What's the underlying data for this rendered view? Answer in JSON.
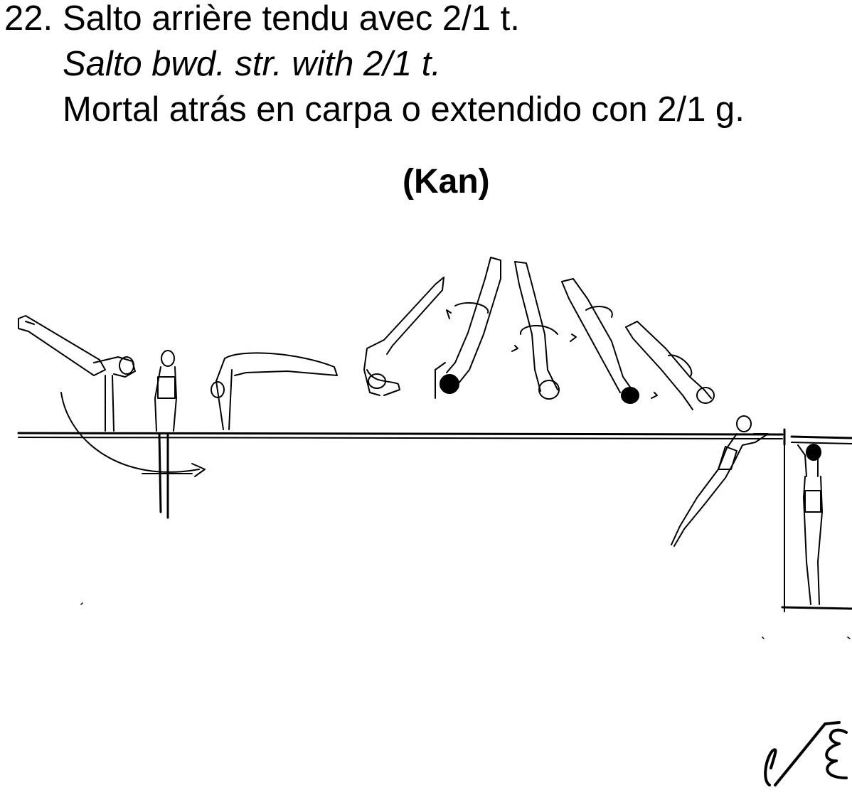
{
  "element": {
    "number": "22.",
    "name_fr": "Salto arrière tendu avec 2/1 t.",
    "name_en": "Salto bwd. str. with 2/1 t.",
    "name_es": "Mortal atrás en carpa o extendido con 2/1 g.",
    "gymnast_name": "(Kan)"
  },
  "illustration": {
    "figures": [
      "handstand-pirouette-figure",
      "standing-figure",
      "pike-press-figure",
      "salto-figure-1",
      "salto-figure-2",
      "salto-figure-3",
      "salto-figure-4",
      "salto-figure-5",
      "regrasp-figure",
      "hanging-figure"
    ]
  }
}
